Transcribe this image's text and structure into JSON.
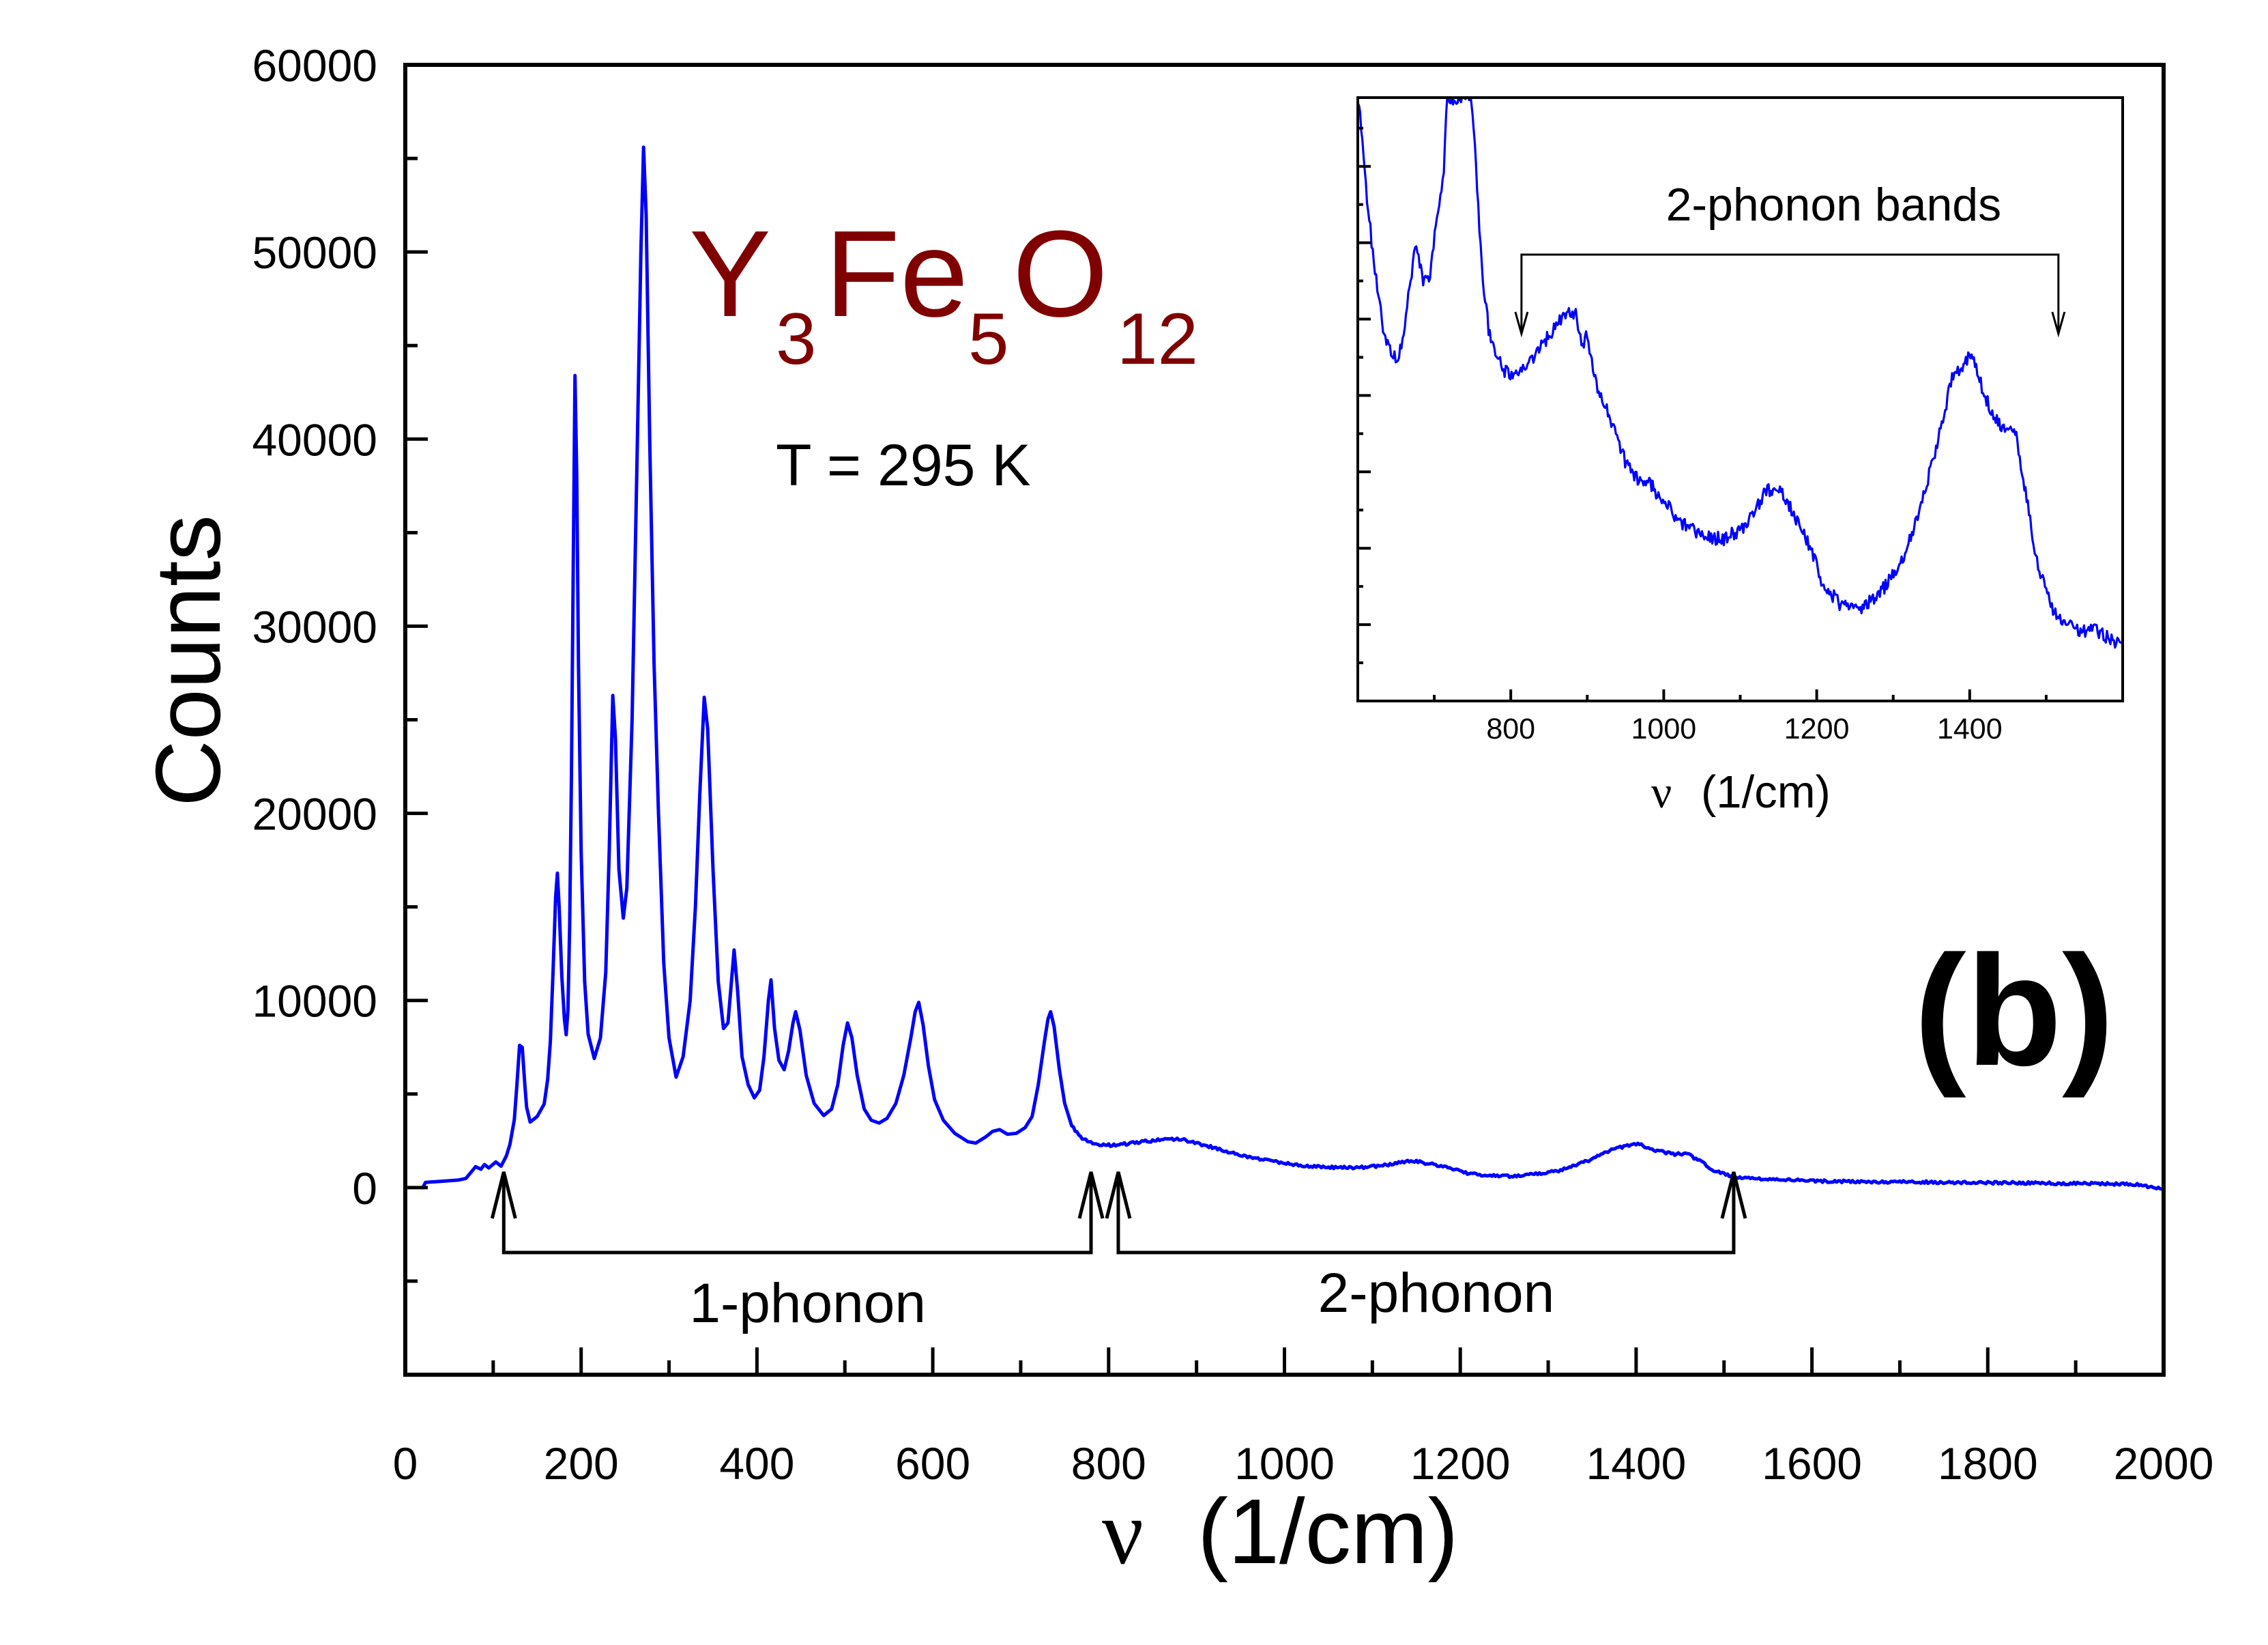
{
  "figure": {
    "formula": [
      {
        "text": "Y"
      },
      {
        "text": "3"
      },
      {
        "text": "Fe"
      },
      {
        "text": "5"
      },
      {
        "text": "O"
      },
      {
        "text": "12"
      }
    ],
    "temperature": "T = 295 K",
    "panel_label": "(b)",
    "colors": {
      "spectrum": "#0000FF",
      "formula": "#800000",
      "axes": "#000000",
      "background": "#FFFFFF"
    }
  },
  "chart_data": [
    {
      "id": "main",
      "type": "line",
      "ylabel": "Counts",
      "xlabel_symbol": "ν",
      "xlabel_unit": "(1/cm)",
      "xlim": [
        0,
        2000
      ],
      "ylim": [
        -10000,
        60000
      ],
      "grid": false,
      "legend": "none",
      "x_ticks": [
        0,
        200,
        400,
        600,
        800,
        1000,
        1200,
        1400,
        1600,
        1800,
        2000
      ],
      "x_tick_labels": [
        "0",
        "200",
        "400",
        "600",
        "800",
        "1000",
        "1200",
        "1400",
        "1600",
        "1800",
        "2000"
      ],
      "x_minor_step": 100,
      "y_ticks": [
        0,
        10000,
        20000,
        30000,
        40000,
        50000,
        60000
      ],
      "y_tick_labels": [
        "0",
        "10000",
        "20000",
        "30000",
        "40000",
        "50000",
        "60000"
      ],
      "y_minor_step": 5000,
      "series": [
        {
          "points": [
            [
              20,
              0
            ],
            [
              23,
              280
            ],
            [
              40,
              330
            ],
            [
              60,
              400
            ],
            [
              69,
              490
            ],
            [
              80,
              1120
            ],
            [
              86,
              980
            ],
            [
              90,
              1230
            ],
            [
              95,
              1050
            ],
            [
              103,
              1370
            ],
            [
              109,
              1145
            ],
            [
              115,
              1700
            ],
            [
              119,
              2300
            ],
            [
              124,
              3630
            ],
            [
              127,
              5500
            ],
            [
              130,
              7600
            ],
            [
              133,
              7500
            ],
            [
              136,
              5500
            ],
            [
              138,
              4300
            ],
            [
              142,
              3500
            ],
            [
              150,
              3800
            ],
            [
              158,
              4470
            ],
            [
              162,
              5800
            ],
            [
              165,
              7800
            ],
            [
              168,
              11500
            ],
            [
              171,
              15500
            ],
            [
              173,
              16800
            ],
            [
              175,
              15000
            ],
            [
              178,
              11300
            ],
            [
              181,
              9000
            ],
            [
              183,
              8170
            ],
            [
              185,
              9500
            ],
            [
              187,
              14000
            ],
            [
              189,
              22000
            ],
            [
              191,
              33000
            ],
            [
              193,
              43400
            ],
            [
              195,
              38000
            ],
            [
              197,
              28000
            ],
            [
              200,
              18000
            ],
            [
              204,
              11000
            ],
            [
              208,
              8200
            ],
            [
              215,
              6900
            ],
            [
              222,
              8000
            ],
            [
              228,
              11500
            ],
            [
              232,
              18000
            ],
            [
              236,
              26300
            ],
            [
              239,
              24000
            ],
            [
              243,
              17000
            ],
            [
              248,
              14400
            ],
            [
              252,
              16000
            ],
            [
              258,
              25000
            ],
            [
              264,
              40000
            ],
            [
              268,
              50000
            ],
            [
              271,
              55600
            ],
            [
              274,
              52000
            ],
            [
              278,
              40000
            ],
            [
              283,
              28000
            ],
            [
              288,
              20000
            ],
            [
              294,
              12000
            ],
            [
              300,
              8000
            ],
            [
              308,
              5900
            ],
            [
              316,
              7000
            ],
            [
              324,
              10000
            ],
            [
              330,
              15000
            ],
            [
              335,
              21000
            ],
            [
              340,
              26200
            ],
            [
              344,
              24500
            ],
            [
              350,
              17000
            ],
            [
              356,
              11000
            ],
            [
              362,
              8500
            ],
            [
              367,
              8800
            ],
            [
              371,
              11000
            ],
            [
              374,
              12700
            ],
            [
              378,
              10500
            ],
            [
              383,
              7000
            ],
            [
              390,
              5500
            ],
            [
              397,
              4800
            ],
            [
              403,
              5200
            ],
            [
              408,
              7000
            ],
            [
              413,
              10000
            ],
            [
              416,
              11100
            ],
            [
              420,
              8500
            ],
            [
              425,
              6800
            ],
            [
              431,
              6300
            ],
            [
              436,
              7300
            ],
            [
              441,
              8800
            ],
            [
              444,
              9400
            ],
            [
              449,
              8400
            ],
            [
              456,
              6000
            ],
            [
              465,
              4500
            ],
            [
              476,
              3850
            ],
            [
              485,
              4200
            ],
            [
              492,
              5500
            ],
            [
              498,
              7600
            ],
            [
              503,
              8800
            ],
            [
              508,
              8000
            ],
            [
              514,
              6000
            ],
            [
              522,
              4200
            ],
            [
              530,
              3600
            ],
            [
              539,
              3450
            ],
            [
              548,
              3700
            ],
            [
              558,
              4500
            ],
            [
              567,
              6000
            ],
            [
              575,
              8000
            ],
            [
              580,
              9400
            ],
            [
              584,
              9900
            ],
            [
              589,
              8700
            ],
            [
              595,
              6500
            ],
            [
              602,
              4700
            ],
            [
              612,
              3600
            ],
            [
              625,
              2900
            ],
            [
              640,
              2450
            ],
            [
              649,
              2380
            ],
            [
              660,
              2700
            ],
            [
              668,
              3000
            ],
            [
              676,
              3100
            ],
            [
              685,
              2850
            ],
            [
              695,
              2900
            ],
            [
              705,
              3200
            ],
            [
              713,
              3800
            ],
            [
              720,
              5500
            ],
            [
              727,
              7800
            ],
            [
              731,
              9000
            ],
            [
              734,
              9400
            ],
            [
              738,
              8600
            ],
            [
              744,
              6300
            ],
            [
              750,
              4500
            ],
            [
              758,
              3300
            ],
            [
              768,
              2700
            ],
            [
              781,
              2400
            ],
            [
              796,
              2260
            ],
            [
              810,
              2290
            ],
            [
              825,
              2360
            ],
            [
              840,
              2460
            ],
            [
              855,
              2530
            ],
            [
              871,
              2600
            ],
            [
              884,
              2560
            ],
            [
              895,
              2450
            ],
            [
              910,
              2250
            ],
            [
              927,
              2050
            ],
            [
              945,
              1800
            ],
            [
              962,
              1600
            ],
            [
              985,
              1420
            ],
            [
              1010,
              1250
            ],
            [
              1030,
              1140
            ],
            [
              1058,
              1070
            ],
            [
              1080,
              1060
            ],
            [
              1110,
              1160
            ],
            [
              1132,
              1360
            ],
            [
              1147,
              1420
            ],
            [
              1169,
              1240
            ],
            [
              1192,
              1000
            ],
            [
              1207,
              780
            ],
            [
              1230,
              640
            ],
            [
              1259,
              610
            ],
            [
              1288,
              740
            ],
            [
              1311,
              900
            ],
            [
              1333,
              1200
            ],
            [
              1355,
              1640
            ],
            [
              1377,
              2110
            ],
            [
              1403,
              2330
            ],
            [
              1421,
              2000
            ],
            [
              1443,
              1780
            ],
            [
              1458,
              1800
            ],
            [
              1473,
              1400
            ],
            [
              1488,
              920
            ],
            [
              1502,
              690
            ],
            [
              1510,
              570
            ],
            [
              1539,
              480
            ],
            [
              1574,
              400
            ],
            [
              1600,
              350
            ],
            [
              1700,
              300
            ],
            [
              1800,
              260
            ],
            [
              1900,
              220
            ],
            [
              1970,
              180
            ],
            [
              2000,
              -100
            ]
          ]
        }
      ],
      "annotations": [
        {
          "label": "1-phonon",
          "from": 112,
          "to": 780
        },
        {
          "label": "2-phonon",
          "from": 811,
          "to": 1511
        }
      ]
    },
    {
      "id": "inset",
      "type": "line",
      "xlabel_symbol": "ν",
      "xlabel_unit": "(1/cm)",
      "xlim": [
        600,
        1600
      ],
      "ylim": [
        0,
        3950
      ],
      "grid": false,
      "legend": "none",
      "x_ticks": [
        800,
        1000,
        1200,
        1400
      ],
      "x_tick_labels": [
        "800",
        "1000",
        "1200",
        "1400"
      ],
      "x_minor_step": 100,
      "y_tick_step": 250,
      "series": [
        {
          "points": [
            [
              600,
              3950
            ],
            [
              604,
              3800
            ],
            [
              611,
              3340
            ],
            [
              621,
              2870
            ],
            [
              633,
              2440
            ],
            [
              641,
              2290
            ],
            [
              652,
              2230
            ],
            [
              658,
              2370
            ],
            [
              668,
              2700
            ],
            [
              675,
              3000
            ],
            [
              685,
              2750
            ],
            [
              694,
              2770
            ],
            [
              702,
              3110
            ],
            [
              713,
              3470
            ],
            [
              716,
              3950
            ],
            [
              749,
              3950
            ],
            [
              759,
              3110
            ],
            [
              764,
              2750
            ],
            [
              771,
              2440
            ],
            [
              781,
              2250
            ],
            [
              794,
              2150
            ],
            [
              809,
              2140
            ],
            [
              825,
              2220
            ],
            [
              838,
              2320
            ],
            [
              852,
              2400
            ],
            [
              868,
              2520
            ],
            [
              884,
              2550
            ],
            [
              893,
              2340
            ],
            [
              900,
              2390
            ],
            [
              910,
              2100
            ],
            [
              917,
              2020
            ],
            [
              927,
              1880
            ],
            [
              937,
              1770
            ],
            [
              951,
              1550
            ],
            [
              961,
              1470
            ],
            [
              985,
              1415
            ],
            [
              993,
              1340
            ],
            [
              1029,
              1140
            ],
            [
              1058,
              1075
            ],
            [
              1080,
              1060
            ],
            [
              1110,
              1160
            ],
            [
              1132,
              1360
            ],
            [
              1147,
              1405
            ],
            [
              1169,
              1240
            ],
            [
              1192,
              1005
            ],
            [
              1207,
              775
            ],
            [
              1230,
              640
            ],
            [
              1259,
              605
            ],
            [
              1288,
              740
            ],
            [
              1311,
              905
            ],
            [
              1333,
              1205
            ],
            [
              1355,
              1640
            ],
            [
              1377,
              2110
            ],
            [
              1403,
              2280
            ],
            [
              1421,
              1975
            ],
            [
              1443,
              1775
            ],
            [
              1458,
              1810
            ],
            [
              1473,
              1375
            ],
            [
              1488,
              910
            ],
            [
              1510,
              570
            ],
            [
              1539,
              470
            ],
            [
              1568,
              455
            ],
            [
              1598,
              370
            ],
            [
              1600,
              360
            ]
          ]
        }
      ],
      "annotations": [
        {
          "label": "2-phonon bands",
          "from": 814,
          "to": 1516
        }
      ]
    }
  ]
}
